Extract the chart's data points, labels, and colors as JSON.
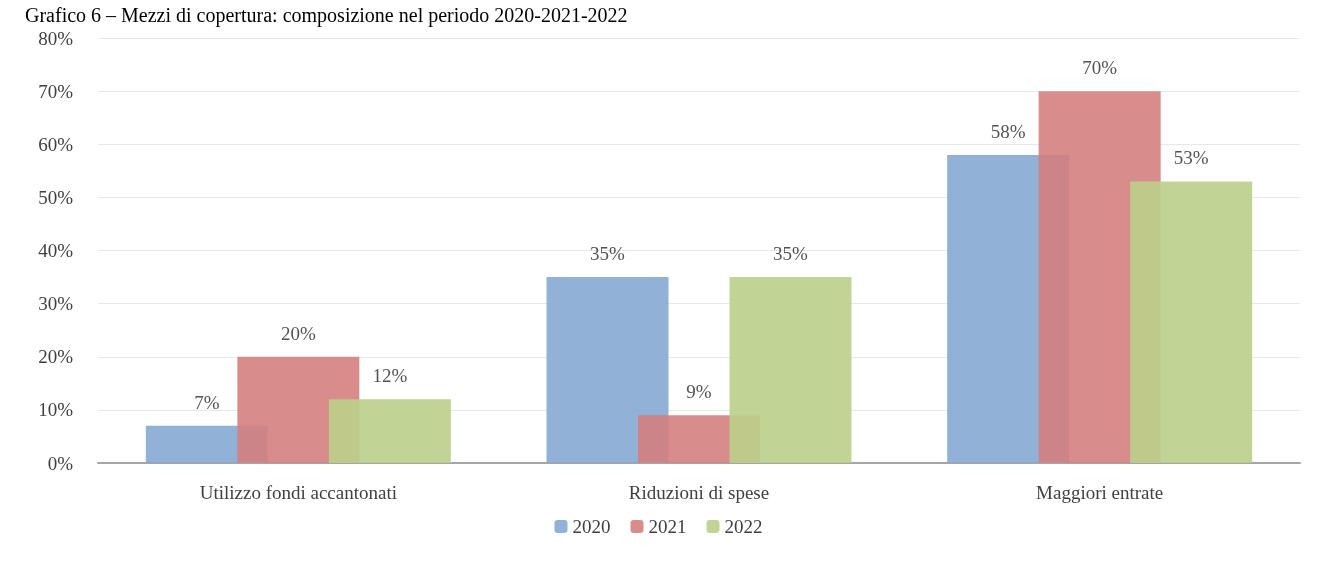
{
  "chart_data": {
    "type": "bar",
    "title": "Grafico 6 – Mezzi di copertura: composizione nel periodo 2020-2021-2022",
    "categories": [
      "Utilizzo fondi accantonati",
      "Riduzioni di spese",
      "Maggiori entrate"
    ],
    "series": [
      {
        "name": "2020",
        "color": "#85a8d2",
        "values": [
          7,
          35,
          58
        ],
        "value_labels": [
          "7%",
          "35%",
          "58%"
        ]
      },
      {
        "name": "2021",
        "color": "#d47f7f",
        "values": [
          20,
          9,
          70
        ],
        "value_labels": [
          "20%",
          "9%",
          "70%"
        ]
      },
      {
        "name": "2022",
        "color": "#bbcf89",
        "values": [
          12,
          35,
          53
        ],
        "value_labels": [
          "12%",
          "35%",
          "53%"
        ]
      }
    ],
    "ylim": [
      0,
      80
    ],
    "yticks": [
      {
        "value": 0,
        "label": "0%"
      },
      {
        "value": 10,
        "label": "10%"
      },
      {
        "value": 20,
        "label": "20%"
      },
      {
        "value": 30,
        "label": "30%"
      },
      {
        "value": 40,
        "label": "40%"
      },
      {
        "value": 50,
        "label": "50%"
      },
      {
        "value": 60,
        "label": "60%"
      },
      {
        "value": 70,
        "label": "70%"
      },
      {
        "value": 80,
        "label": "80%"
      }
    ],
    "grid": "y",
    "legend": "bottom"
  }
}
